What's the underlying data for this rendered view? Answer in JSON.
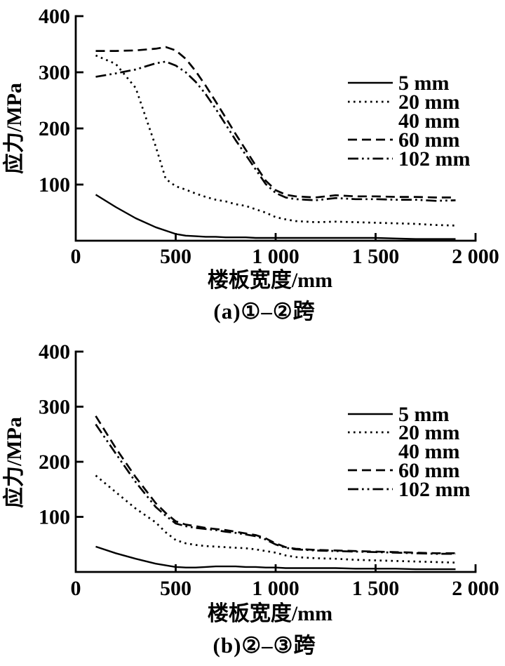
{
  "figure": {
    "background": "#ffffff",
    "ink": "#000000"
  },
  "chart_data": [
    {
      "type": "line",
      "panel": "a",
      "caption": "(a)①–②跨",
      "xlabel": "楼板宽度/mm",
      "ylabel": "应力/MPa",
      "xlim": [
        0,
        2000
      ],
      "ylim": [
        0,
        400
      ],
      "xticks": [
        0,
        500,
        1000,
        1500,
        2000
      ],
      "xtick_labels": [
        "0",
        "500",
        "1 000",
        "1 500",
        "2 000"
      ],
      "yticks": [
        100,
        200,
        300,
        400
      ],
      "ytick_labels": [
        "100",
        "200",
        "300",
        "400"
      ],
      "grid": false,
      "legend_position": "inside upper right",
      "legend": [
        {
          "label": "5 mm",
          "style": "solid"
        },
        {
          "label": "20 mm",
          "style": "dotted"
        },
        {
          "label": "40 mm",
          "style": "none"
        },
        {
          "label": "60 mm",
          "style": "dashed"
        },
        {
          "label": "102 mm",
          "style": "dash-dot-dot"
        }
      ],
      "x": [
        100,
        200,
        300,
        400,
        450,
        500,
        550,
        600,
        650,
        700,
        750,
        800,
        850,
        900,
        950,
        1000,
        1050,
        1100,
        1150,
        1200,
        1300,
        1400,
        1500,
        1600,
        1700,
        1800,
        1900
      ],
      "series": [
        {
          "name": "5 mm",
          "style": "solid",
          "values": [
            82,
            60,
            40,
            24,
            18,
            12,
            9,
            8,
            7,
            7,
            6,
            6,
            6,
            5,
            5,
            5,
            5,
            5,
            5,
            5,
            5,
            5,
            5,
            4,
            3,
            3,
            3
          ]
        },
        {
          "name": "20 mm",
          "style": "dotted",
          "values": [
            330,
            315,
            272,
            168,
            110,
            97,
            91,
            84,
            78,
            73,
            70,
            65,
            62,
            56,
            50,
            42,
            38,
            35,
            34,
            33,
            34,
            33,
            32,
            31,
            30,
            28,
            27
          ]
        },
        {
          "name": "60 mm",
          "style": "dashed",
          "values": [
            338,
            338,
            339,
            342,
            345,
            339,
            324,
            302,
            276,
            248,
            219,
            190,
            162,
            134,
            107,
            90,
            82,
            79,
            78,
            77,
            81,
            79,
            79,
            78,
            78,
            77,
            77
          ]
        },
        {
          "name": "102 mm",
          "style": "dash-dot-dot",
          "values": [
            292,
            298,
            305,
            316,
            319,
            312,
            300,
            283,
            261,
            235,
            207,
            179,
            153,
            127,
            101,
            85,
            77,
            74,
            73,
            72,
            76,
            74,
            74,
            73,
            73,
            71,
            72
          ]
        }
      ],
      "note": "Legend entry 40 mm has no visible sample line and no separately distinguishable curve in the plot."
    },
    {
      "type": "line",
      "panel": "b",
      "caption": "(b)②–③跨",
      "xlabel": "楼板宽度/mm",
      "ylabel": "应力/MPa",
      "xlim": [
        0,
        2000
      ],
      "ylim": [
        0,
        400
      ],
      "xticks": [
        0,
        500,
        1000,
        1500,
        2000
      ],
      "xtick_labels": [
        "0",
        "500",
        "1 000",
        "1 500",
        "2 000"
      ],
      "yticks": [
        100,
        200,
        300,
        400
      ],
      "ytick_labels": [
        "100",
        "200",
        "300",
        "400"
      ],
      "grid": false,
      "legend_position": "inside upper right",
      "legend": [
        {
          "label": "5 mm",
          "style": "solid"
        },
        {
          "label": "20 mm",
          "style": "dotted"
        },
        {
          "label": "40 mm",
          "style": "none"
        },
        {
          "label": "60 mm",
          "style": "dashed"
        },
        {
          "label": "102 mm",
          "style": "dash-dot-dot"
        }
      ],
      "x": [
        100,
        200,
        300,
        400,
        450,
        500,
        550,
        600,
        650,
        700,
        750,
        800,
        850,
        900,
        950,
        1000,
        1050,
        1100,
        1150,
        1200,
        1300,
        1400,
        1500,
        1600,
        1700,
        1800,
        1900
      ],
      "series": [
        {
          "name": "5 mm",
          "style": "solid",
          "values": [
            46,
            34,
            24,
            15,
            12,
            9,
            8,
            8,
            9,
            10,
            10,
            10,
            9,
            9,
            8,
            8,
            7,
            7,
            7,
            7,
            7,
            6,
            6,
            6,
            5,
            5,
            5
          ]
        },
        {
          "name": "20 mm",
          "style": "dotted",
          "values": [
            175,
            145,
            115,
            90,
            72,
            58,
            52,
            49,
            47,
            46,
            45,
            44,
            43,
            41,
            38,
            35,
            30,
            27,
            26,
            25,
            24,
            22,
            21,
            20,
            19,
            18,
            17
          ]
        },
        {
          "name": "60 mm",
          "style": "dashed",
          "values": [
            283,
            225,
            172,
            125,
            107,
            92,
            86,
            83,
            80,
            78,
            76,
            73,
            70,
            67,
            61,
            52,
            45,
            42,
            41,
            40,
            39,
            38,
            37,
            36,
            35,
            34,
            34
          ]
        },
        {
          "name": "102 mm",
          "style": "dash-dot-dot",
          "values": [
            268,
            215,
            163,
            118,
            102,
            88,
            83,
            80,
            78,
            76,
            73,
            71,
            68,
            65,
            59,
            50,
            44,
            41,
            40,
            39,
            38,
            37,
            36,
            35,
            34,
            33,
            33
          ]
        }
      ],
      "note": "Legend entry 40 mm has no visible sample line and no separately distinguishable curve in the plot."
    }
  ]
}
